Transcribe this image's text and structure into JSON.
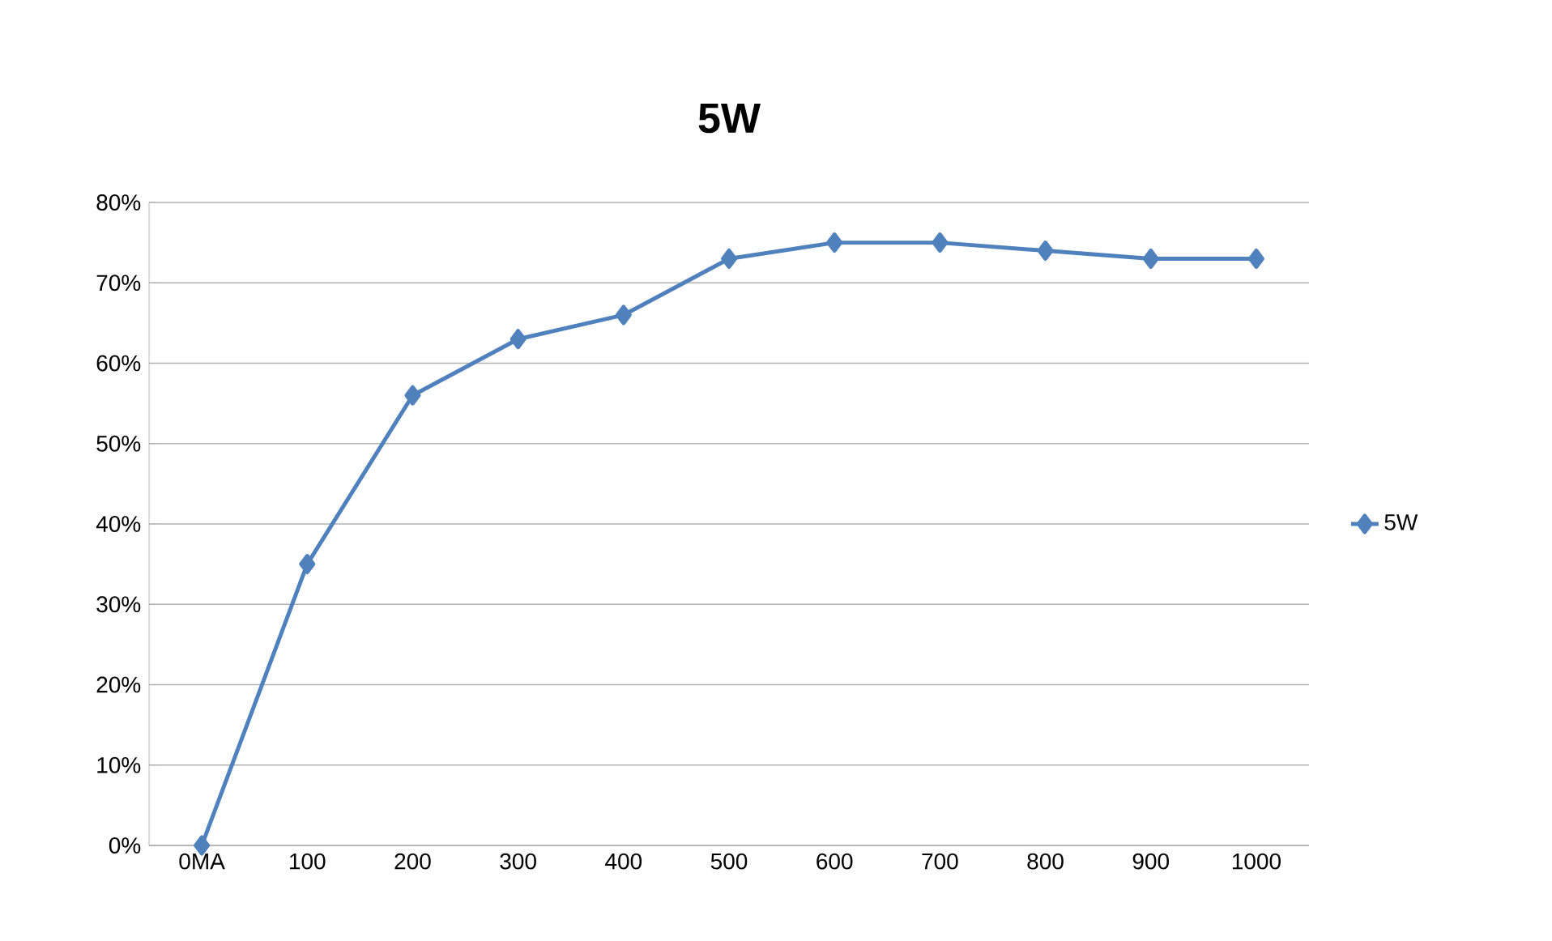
{
  "chart_data": {
    "type": "line",
    "title": "5W",
    "categories": [
      "0MA",
      "100",
      "200",
      "300",
      "400",
      "500",
      "600",
      "700",
      "800",
      "900",
      "1000"
    ],
    "series": [
      {
        "name": "5W",
        "color": "#4f81bd",
        "values": [
          0,
          35,
          56,
          63,
          66,
          73,
          75,
          75,
          74,
          73,
          73
        ]
      }
    ],
    "ylim": [
      0,
      80
    ],
    "yticks": [
      {
        "value": 0,
        "label": "0%"
      },
      {
        "value": 10,
        "label": "10%"
      },
      {
        "value": 20,
        "label": "20%"
      },
      {
        "value": 30,
        "label": "30%"
      },
      {
        "value": 40,
        "label": "40%"
      },
      {
        "value": 50,
        "label": "50%"
      },
      {
        "value": 60,
        "label": "60%"
      },
      {
        "value": 70,
        "label": "70%"
      },
      {
        "value": 80,
        "label": "80%"
      }
    ],
    "grid": "y",
    "legend": "right",
    "marker": "diamond",
    "line_style": "solid"
  }
}
